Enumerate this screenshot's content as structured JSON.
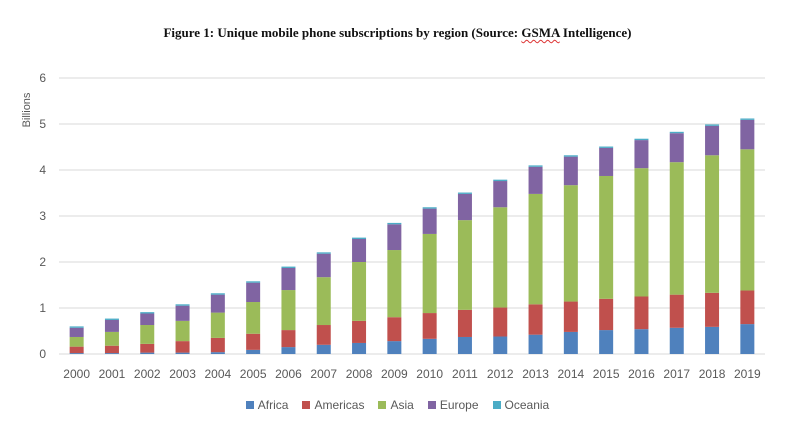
{
  "figure_title_prefix": "Figure 1: Unique mobile phone subscriptions by region (Source: ",
  "figure_title_source": "GSMA",
  "figure_title_suffix": " Intelligence)",
  "chart_data": {
    "type": "bar",
    "stacked": true,
    "title": "Figure 1: Unique mobile phone subscriptions by region (Source: GSMA Intelligence)",
    "xlabel": "",
    "ylabel": "Billions",
    "ylim": [
      0,
      6
    ],
    "yticks": [
      0,
      1,
      2,
      3,
      4,
      5,
      6
    ],
    "grid": true,
    "legend_position": "bottom",
    "categories": [
      "2000",
      "2001",
      "2002",
      "2003",
      "2004",
      "2005",
      "2006",
      "2007",
      "2008",
      "2009",
      "2010",
      "2011",
      "2012",
      "2013",
      "2014",
      "2015",
      "2016",
      "2017",
      "2018",
      "2019"
    ],
    "series": [
      {
        "name": "Africa",
        "color": "#4F81BD",
        "values": [
          0.02,
          0.02,
          0.03,
          0.03,
          0.04,
          0.09,
          0.15,
          0.2,
          0.24,
          0.28,
          0.33,
          0.37,
          0.38,
          0.42,
          0.48,
          0.52,
          0.54,
          0.57,
          0.59,
          0.65
        ]
      },
      {
        "name": "Americas",
        "color": "#C0504D",
        "values": [
          0.14,
          0.16,
          0.19,
          0.25,
          0.31,
          0.35,
          0.37,
          0.43,
          0.48,
          0.52,
          0.56,
          0.59,
          0.63,
          0.66,
          0.66,
          0.68,
          0.71,
          0.72,
          0.74,
          0.73
        ]
      },
      {
        "name": "Asia",
        "color": "#9BBB59",
        "values": [
          0.21,
          0.3,
          0.41,
          0.44,
          0.55,
          0.69,
          0.87,
          1.04,
          1.28,
          1.46,
          1.72,
          1.95,
          2.18,
          2.4,
          2.53,
          2.67,
          2.79,
          2.88,
          2.99,
          3.07
        ]
      },
      {
        "name": "Europe",
        "color": "#8064A2",
        "values": [
          0.2,
          0.26,
          0.25,
          0.33,
          0.39,
          0.42,
          0.48,
          0.51,
          0.5,
          0.56,
          0.55,
          0.57,
          0.57,
          0.59,
          0.62,
          0.61,
          0.61,
          0.63,
          0.64,
          0.64
        ]
      },
      {
        "name": "Oceania",
        "color": "#4BACC6",
        "values": [
          0.03,
          0.03,
          0.03,
          0.03,
          0.03,
          0.03,
          0.03,
          0.03,
          0.03,
          0.03,
          0.03,
          0.03,
          0.03,
          0.03,
          0.03,
          0.03,
          0.03,
          0.03,
          0.03,
          0.03
        ]
      }
    ]
  }
}
